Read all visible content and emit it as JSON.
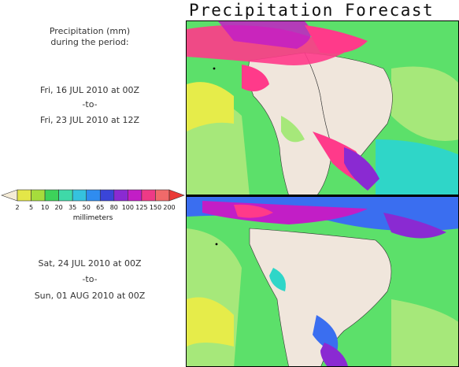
{
  "header": {
    "title": "Precipitation Forecast"
  },
  "intro": {
    "line1": "Precipitation (mm)",
    "line2": "during the period:"
  },
  "period1": {
    "start": "Fri, 16 JUL 2010 at 00Z",
    "to": "-to-",
    "end": "Fri, 23 JUL 2010 at 12Z"
  },
  "period2": {
    "start": "Sat, 24 JUL 2010 at 00Z",
    "to": "-to-",
    "end": "Sun, 01 AUG 2010 at 00Z"
  },
  "legend": {
    "labels": [
      "2",
      "5",
      "10",
      "20",
      "35",
      "50",
      "65",
      "80",
      "100",
      "125",
      "150",
      "200"
    ],
    "units": "millimeters",
    "colors": [
      "#f5ecd7",
      "#e4e648",
      "#a6dc3c",
      "#3dd25a",
      "#3fd9a8",
      "#35c2de",
      "#2f8cf0",
      "#3a45d8",
      "#8a2ad2",
      "#c21ec6",
      "#ee3a86",
      "#f06a6a",
      "#ea3a36"
    ]
  },
  "colors": {
    "land": "#f0e6dc",
    "ocean_light": "#a6e87a",
    "ocean": "#5ce06a",
    "moist": "#2fd6c8",
    "heavy_blue": "#3a6ef0",
    "heavy_purple": "#8a2ad2",
    "extreme": "#ff3a8a",
    "yellow": "#e6ec4a"
  },
  "maps": [
    {
      "name": "forecast-period-1"
    },
    {
      "name": "forecast-period-2"
    }
  ]
}
